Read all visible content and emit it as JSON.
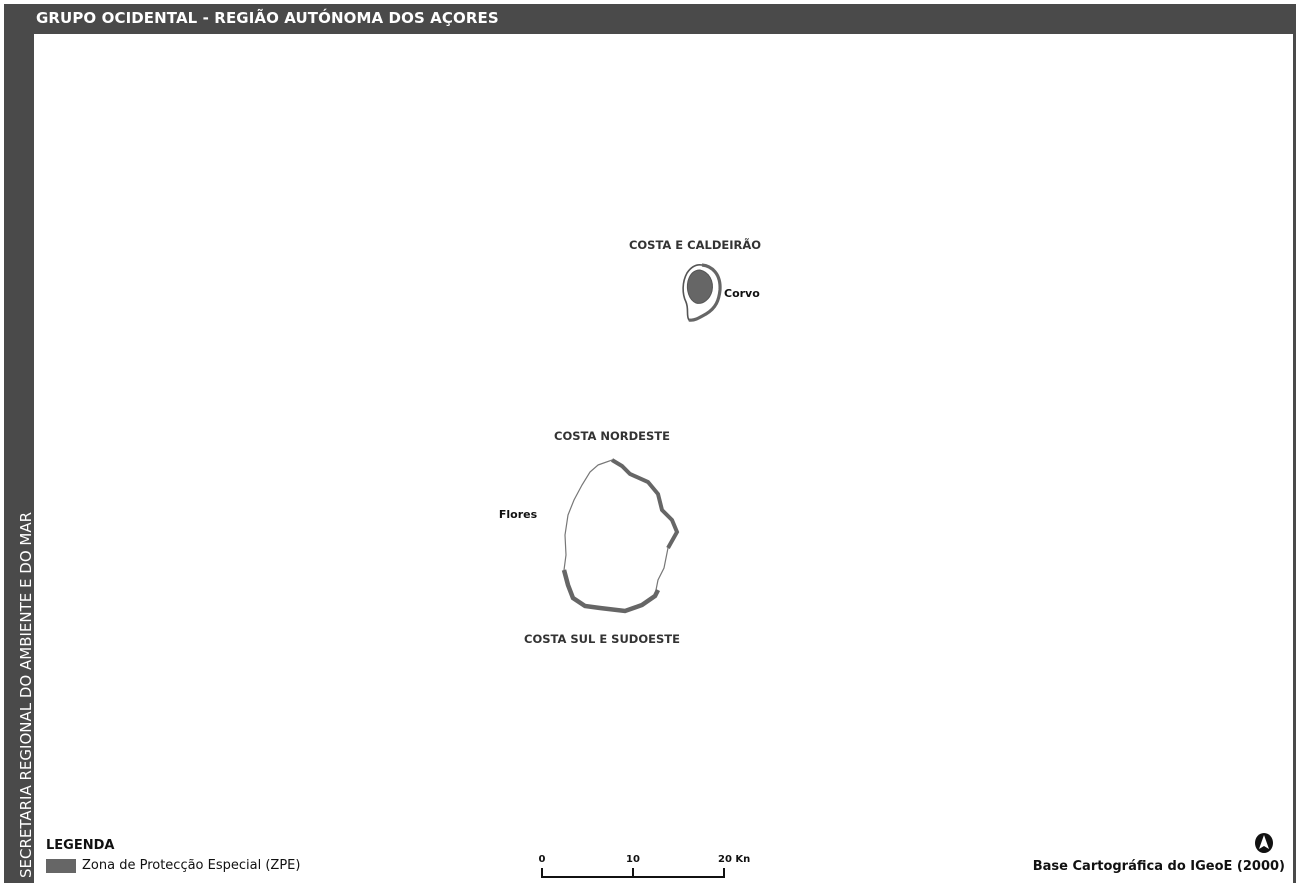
{
  "header": {
    "title": "GRUPO OCIDENTAL - REGIÃO AUTÓNOMA DOS AÇORES"
  },
  "side_label": "SECRETARIA REGIONAL DO AMBIENTE E DO MAR",
  "map": {
    "zone_labels": {
      "corvo_zone": "COSTA E CALDEIRÃO",
      "flores_north_zone": "COSTA NORDESTE",
      "flores_south_zone": "COSTA SUL E SUDOESTE"
    },
    "island_labels": {
      "corvo": "Corvo",
      "flores": "Flores"
    },
    "colors": {
      "zpe_fill": "#666666",
      "frame": "#4a4a4a"
    }
  },
  "legend": {
    "title": "LEGENDA",
    "items": [
      {
        "label": "Zona de Protecção Especial (ZPE)"
      }
    ]
  },
  "scale_bar": {
    "ticks": [
      "0",
      "10",
      "20 Kn"
    ]
  },
  "north_arrow": {
    "icon": "north-arrow-icon"
  },
  "attribution": "Base Cartográfica do IGeoE (2000)"
}
